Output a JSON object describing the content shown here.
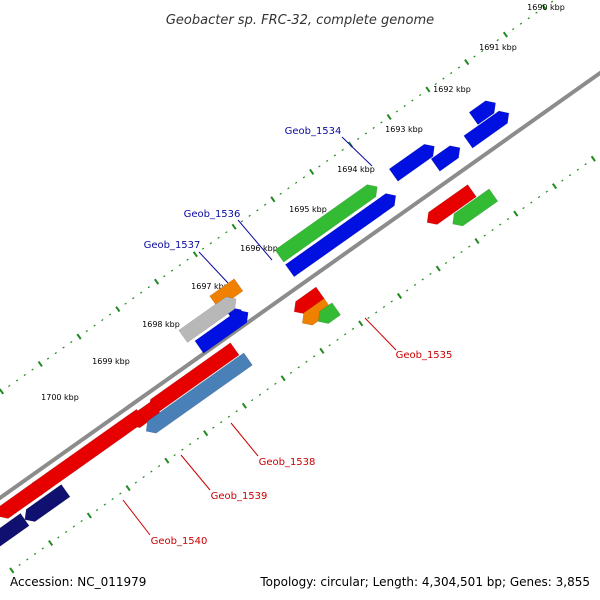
{
  "title": "Geobacter sp. FRC-32, complete genome",
  "footer": {
    "accession": "Accession: NC_011979",
    "topology": "Topology: circular; Length: 4,304,501 bp; Genes: 3,855"
  },
  "colors": {
    "backbone": "#8c8c8c",
    "tick_outer": "#1f8a1f",
    "tick_inner": "#1f8a1f",
    "label_forward": "#0a0aa0",
    "label_reverse": "#cc0000",
    "red": "#e60000",
    "blue": "#0010e0",
    "green": "#33bb33",
    "orange": "#f08000",
    "grey": "#b8b8b8",
    "steelblue": "#4a80b8",
    "navy": "#101070"
  },
  "ticks": [
    {
      "label": "1690 kbp"
    },
    {
      "label": "1691 kbp"
    },
    {
      "label": "1692 kbp"
    },
    {
      "label": "1693 kbp"
    },
    {
      "label": "1694 kbp"
    },
    {
      "label": "1695 kbp"
    },
    {
      "label": "1696 kbp"
    },
    {
      "label": "1697 kbp"
    },
    {
      "label": "1698 kbp"
    },
    {
      "label": "1699 kbp"
    },
    {
      "label": "1700 kbp"
    }
  ],
  "gene_labels": [
    {
      "text": "Geob_1534",
      "strand": "forward"
    },
    {
      "text": "Geob_1536",
      "strand": "forward"
    },
    {
      "text": "Geob_1537",
      "strand": "forward"
    },
    {
      "text": "Geob_1535",
      "strand": "reverse"
    },
    {
      "text": "Geob_1538",
      "strand": "reverse"
    },
    {
      "text": "Geob_1539",
      "strand": "reverse"
    },
    {
      "text": "Geob_1540",
      "strand": "reverse"
    }
  ]
}
